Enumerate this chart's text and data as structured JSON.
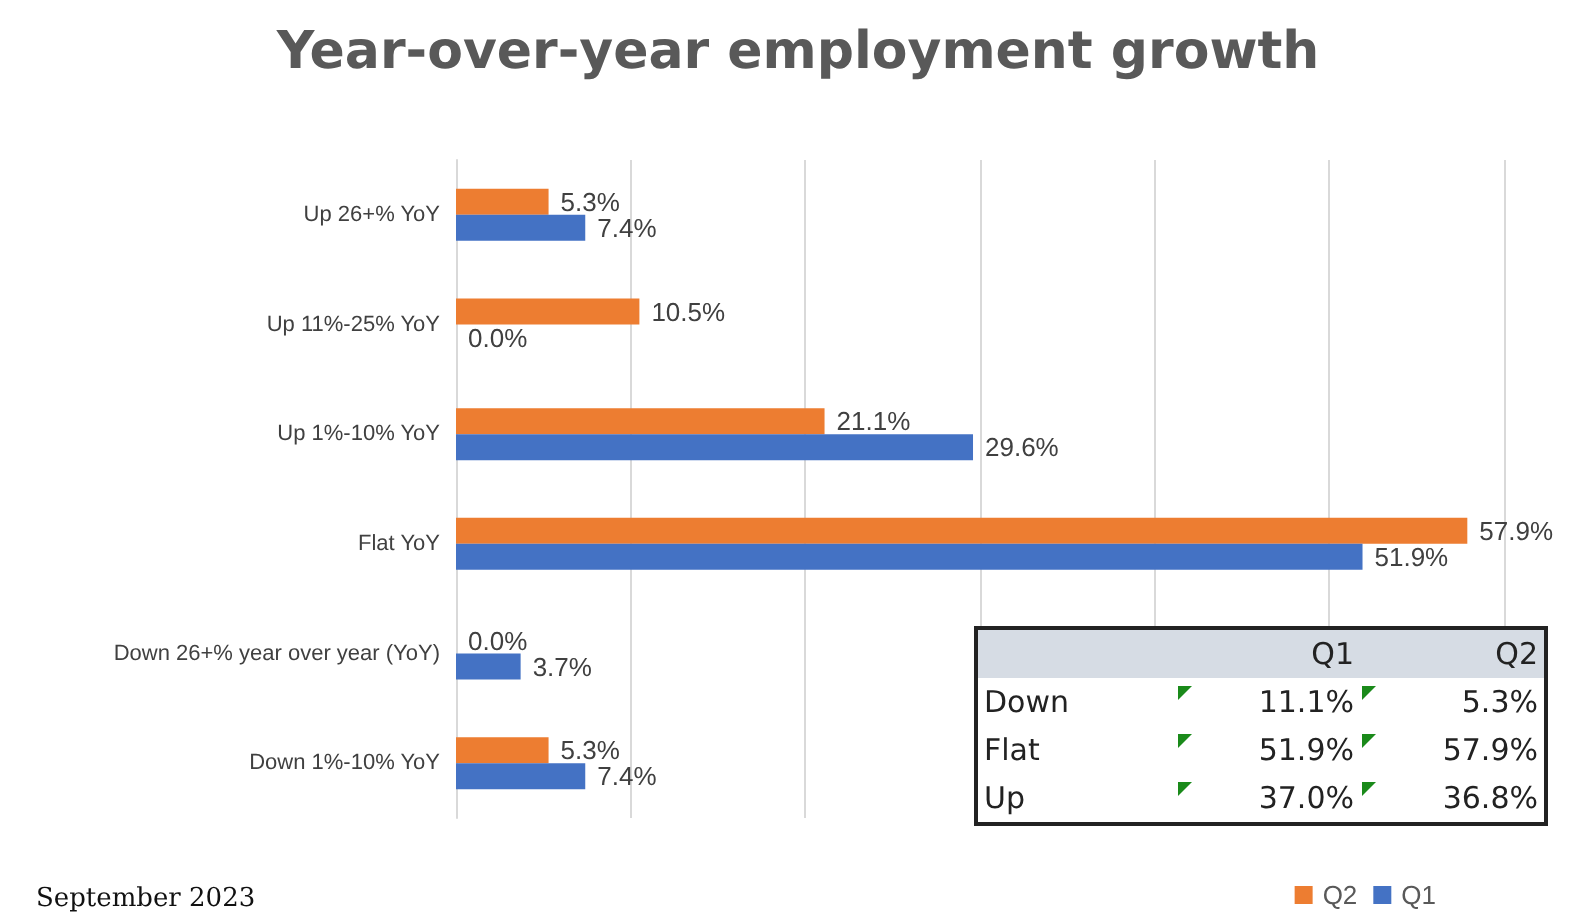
{
  "chart_data": [
    {
      "type": "bar",
      "orientation": "horizontal",
      "title": "Year-over-year employment growth",
      "categories": [
        "Up 26+% YoY",
        "Up 11%-25% YoY",
        "Up 1%-10% YoY",
        "Flat YoY",
        "Down 26+% year over year (YoY)",
        "Down 1%-10% YoY"
      ],
      "series": [
        {
          "name": "Q2",
          "color": "#ed7d31",
          "values": [
            5.3,
            10.5,
            21.1,
            57.9,
            0.0,
            5.3
          ],
          "value_labels": [
            "5.3%",
            "10.5%",
            "21.1%",
            "57.9%",
            "0.0%",
            "5.3%"
          ]
        },
        {
          "name": "Q1",
          "color": "#4472c4",
          "values": [
            7.4,
            0.0,
            29.6,
            51.9,
            3.7,
            7.4
          ],
          "value_labels": [
            "7.4%",
            "0.0%",
            "29.6%",
            "51.9%",
            "3.7%",
            "7.4%"
          ]
        }
      ],
      "xlim": [
        0,
        60
      ],
      "xticks": [
        {
          "value": 0,
          "label": null
        },
        {
          "value": 10,
          "label": null
        },
        {
          "value": 20,
          "label": null
        },
        {
          "value": 30,
          "label": null
        },
        {
          "value": 40,
          "label": null
        },
        {
          "value": 50,
          "label": null
        },
        {
          "value": 60,
          "label": null
        }
      ],
      "grid": "x",
      "tick_labels": "y",
      "legend": "bottom right",
      "annotations": [
        "September 2023"
      ]
    },
    {
      "type": "other",
      "categories": [
        "Q1",
        "Q2"
      ],
      "y_categories": [
        "Down",
        "Flat",
        "Up"
      ],
      "cell_labels": [
        [
          "11.1%",
          "5.3%"
        ],
        [
          "51.9%",
          "57.9%"
        ],
        [
          "37.0%",
          "36.8%"
        ]
      ]
    }
  ]
}
